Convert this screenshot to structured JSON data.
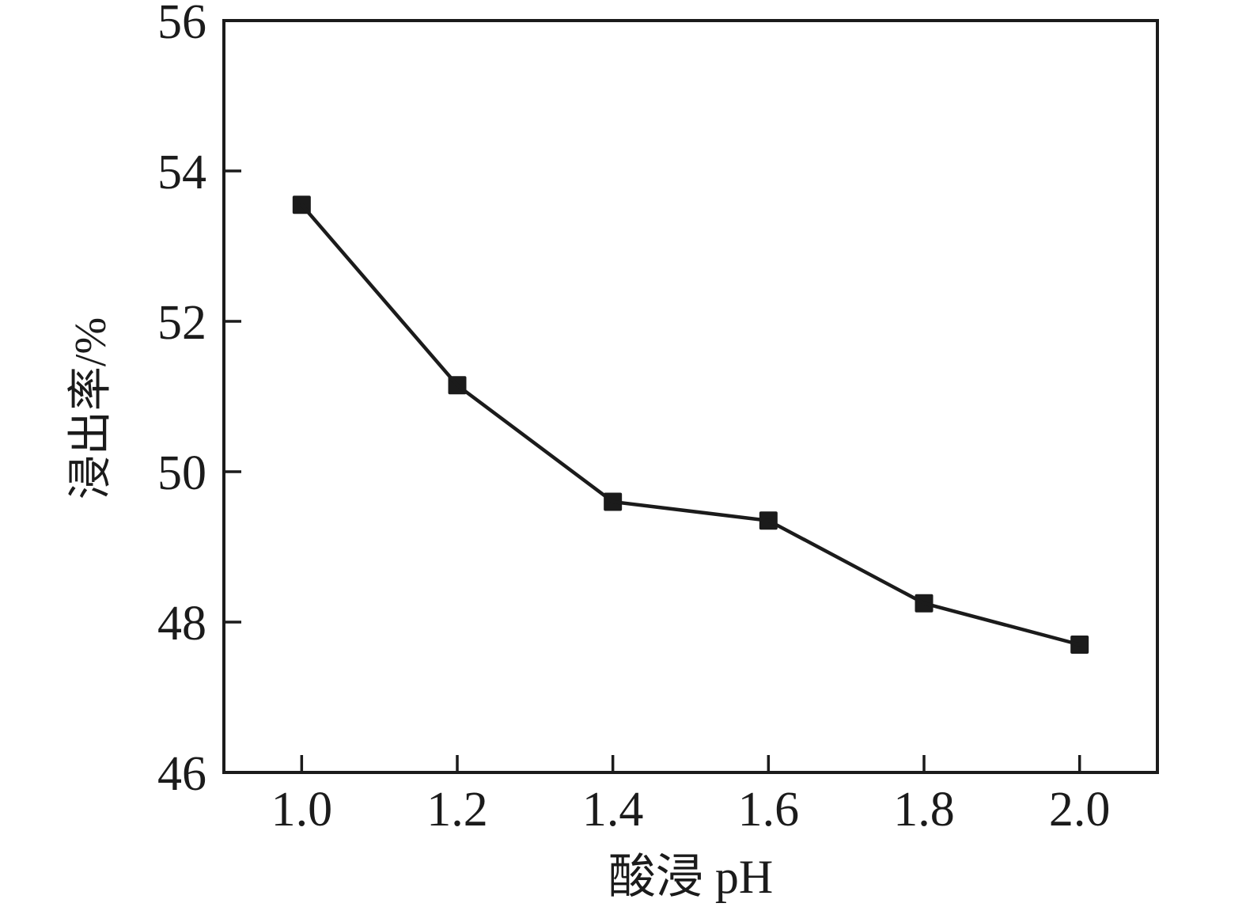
{
  "figure": {
    "background_color": "#ffffff",
    "ink_color": "#1b1b1b"
  },
  "chart_data": {
    "type": "line",
    "title": "",
    "xlabel": "酸浸 pH",
    "ylabel": "浸出率/%",
    "x": [
      1.0,
      1.2,
      1.4,
      1.6,
      1.8,
      2.0
    ],
    "y": [
      53.55,
      51.15,
      49.6,
      49.35,
      48.25,
      47.7
    ],
    "series_name": "浸出率",
    "xticks": [
      1.0,
      1.2,
      1.4,
      1.6,
      1.8,
      2.0
    ],
    "xtick_labels": [
      "1.0",
      "1.2",
      "1.4",
      "1.6",
      "1.8",
      "2.0"
    ],
    "yticks": [
      46,
      48,
      50,
      52,
      54,
      56
    ],
    "ytick_labels": [
      "46",
      "48",
      "50",
      "52",
      "54",
      "56"
    ],
    "xlim": [
      0.9,
      2.1
    ],
    "ylim": [
      46,
      56
    ],
    "marker": "filled-square",
    "line_color": "#1b1b1b",
    "marker_color": "#1b1b1b",
    "grid": false,
    "legend": false,
    "tick_direction": "in",
    "frame": "full-box"
  }
}
